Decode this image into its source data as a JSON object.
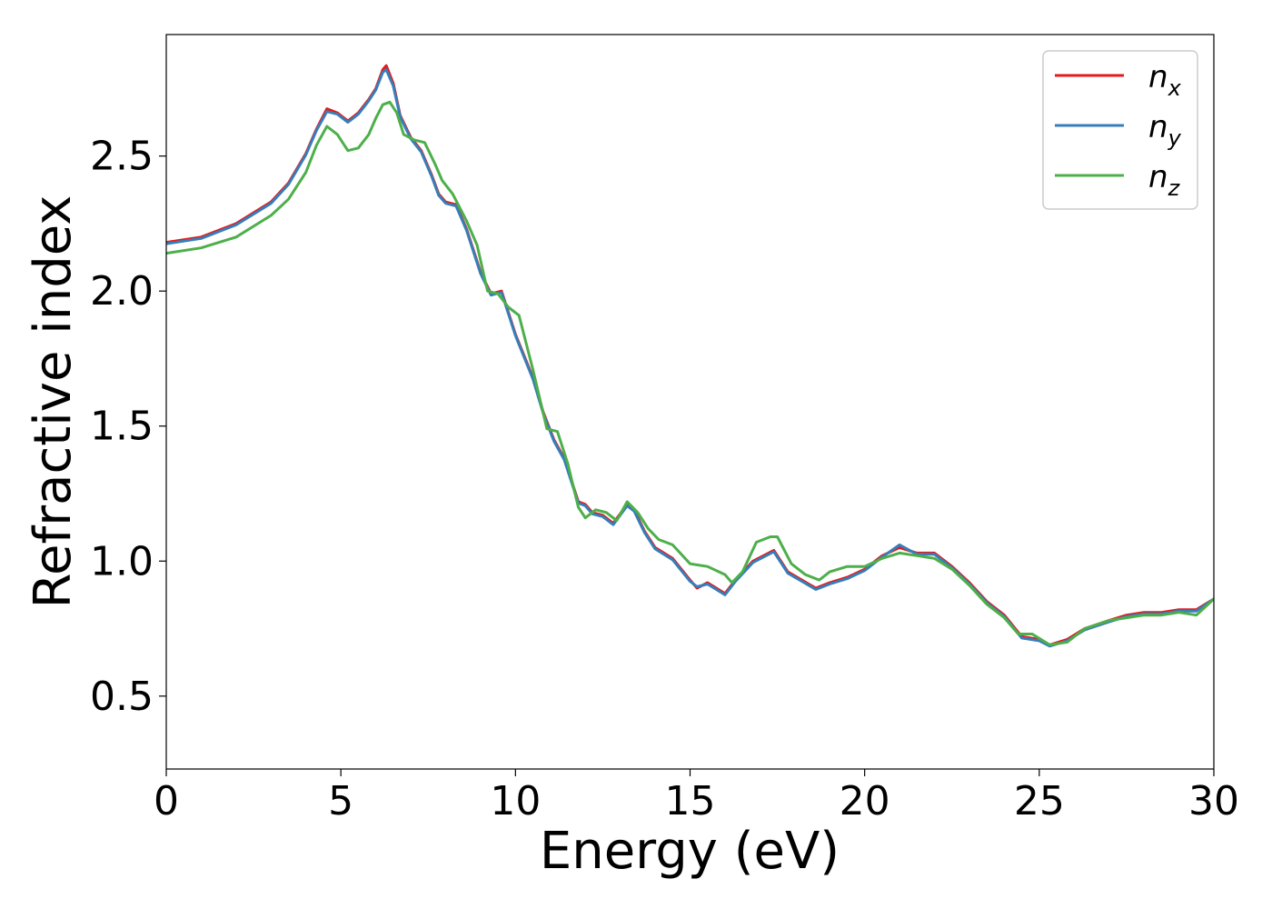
{
  "chart_data": {
    "type": "line",
    "title": "",
    "xlabel": "Energy (eV)",
    "ylabel": "Refractive index",
    "xlim": [
      0,
      30
    ],
    "ylim": [
      0.23,
      2.95
    ],
    "xticks": [
      0,
      5,
      10,
      15,
      20,
      25,
      30
    ],
    "xtick_labels": [
      "0",
      "5",
      "10",
      "15",
      "20",
      "25",
      "30"
    ],
    "yticks": [
      0.5,
      1.0,
      1.5,
      2.0,
      2.5
    ],
    "ytick_labels": [
      "0.5",
      "1.0",
      "1.5",
      "2.0",
      "2.5"
    ],
    "grid": false,
    "legend_position": "top-right",
    "series": [
      {
        "name": "n",
        "subscript": "x",
        "color": "#e41a1c",
        "points": [
          [
            0,
            2.18
          ],
          [
            1,
            2.2
          ],
          [
            2,
            2.25
          ],
          [
            3,
            2.33
          ],
          [
            3.5,
            2.4
          ],
          [
            4,
            2.51
          ],
          [
            4.3,
            2.6
          ],
          [
            4.6,
            2.675
          ],
          [
            4.9,
            2.66
          ],
          [
            5.2,
            2.63
          ],
          [
            5.5,
            2.66
          ],
          [
            5.8,
            2.71
          ],
          [
            6.0,
            2.75
          ],
          [
            6.2,
            2.82
          ],
          [
            6.3,
            2.835
          ],
          [
            6.5,
            2.77
          ],
          [
            6.7,
            2.65
          ],
          [
            7.0,
            2.57
          ],
          [
            7.3,
            2.52
          ],
          [
            7.6,
            2.43
          ],
          [
            7.8,
            2.36
          ],
          [
            8.0,
            2.33
          ],
          [
            8.3,
            2.32
          ],
          [
            8.6,
            2.23
          ],
          [
            9.0,
            2.07
          ],
          [
            9.3,
            1.99
          ],
          [
            9.6,
            2.0
          ],
          [
            10.0,
            1.84
          ],
          [
            10.5,
            1.68
          ],
          [
            10.8,
            1.55
          ],
          [
            11.1,
            1.45
          ],
          [
            11.4,
            1.38
          ],
          [
            11.8,
            1.22
          ],
          [
            12.0,
            1.21
          ],
          [
            12.2,
            1.18
          ],
          [
            12.5,
            1.17
          ],
          [
            12.8,
            1.14
          ],
          [
            13.2,
            1.21
          ],
          [
            13.4,
            1.19
          ],
          [
            13.7,
            1.11
          ],
          [
            14.0,
            1.05
          ],
          [
            14.5,
            1.01
          ],
          [
            15.0,
            0.93
          ],
          [
            15.2,
            0.9
          ],
          [
            15.5,
            0.92
          ],
          [
            16.0,
            0.88
          ],
          [
            16.3,
            0.93
          ],
          [
            16.8,
            1.0
          ],
          [
            17.4,
            1.04
          ],
          [
            17.8,
            0.96
          ],
          [
            18.2,
            0.93
          ],
          [
            18.6,
            0.9
          ],
          [
            19.0,
            0.92
          ],
          [
            19.5,
            0.94
          ],
          [
            20.0,
            0.97
          ],
          [
            20.5,
            1.02
          ],
          [
            21.0,
            1.05
          ],
          [
            21.5,
            1.03
          ],
          [
            22.0,
            1.03
          ],
          [
            22.5,
            0.98
          ],
          [
            23.0,
            0.92
          ],
          [
            23.5,
            0.85
          ],
          [
            24.0,
            0.8
          ],
          [
            24.5,
            0.72
          ],
          [
            25.0,
            0.71
          ],
          [
            25.3,
            0.69
          ],
          [
            25.8,
            0.71
          ],
          [
            26.3,
            0.75
          ],
          [
            27.0,
            0.78
          ],
          [
            27.5,
            0.8
          ],
          [
            28.0,
            0.81
          ],
          [
            28.5,
            0.81
          ],
          [
            29.0,
            0.82
          ],
          [
            29.5,
            0.82
          ],
          [
            30.0,
            0.86
          ]
        ]
      },
      {
        "name": "n",
        "subscript": "y",
        "color": "#377eb8",
        "points": [
          [
            0,
            2.175
          ],
          [
            1,
            2.195
          ],
          [
            2,
            2.245
          ],
          [
            3,
            2.325
          ],
          [
            3.5,
            2.395
          ],
          [
            4,
            2.505
          ],
          [
            4.3,
            2.595
          ],
          [
            4.6,
            2.665
          ],
          [
            4.9,
            2.655
          ],
          [
            5.2,
            2.625
          ],
          [
            5.5,
            2.655
          ],
          [
            5.8,
            2.705
          ],
          [
            6.0,
            2.745
          ],
          [
            6.2,
            2.81
          ],
          [
            6.3,
            2.82
          ],
          [
            6.5,
            2.76
          ],
          [
            6.7,
            2.645
          ],
          [
            7.0,
            2.565
          ],
          [
            7.3,
            2.515
          ],
          [
            7.6,
            2.425
          ],
          [
            7.8,
            2.355
          ],
          [
            8.0,
            2.325
          ],
          [
            8.3,
            2.315
          ],
          [
            8.6,
            2.225
          ],
          [
            9.0,
            2.065
          ],
          [
            9.3,
            1.985
          ],
          [
            9.6,
            1.995
          ],
          [
            10.0,
            1.835
          ],
          [
            10.5,
            1.675
          ],
          [
            10.8,
            1.545
          ],
          [
            11.1,
            1.445
          ],
          [
            11.4,
            1.375
          ],
          [
            11.8,
            1.215
          ],
          [
            12.0,
            1.205
          ],
          [
            12.2,
            1.175
          ],
          [
            12.5,
            1.165
          ],
          [
            12.8,
            1.135
          ],
          [
            13.2,
            1.205
          ],
          [
            13.4,
            1.185
          ],
          [
            13.7,
            1.105
          ],
          [
            14.0,
            1.045
          ],
          [
            14.5,
            1.005
          ],
          [
            15.0,
            0.925
          ],
          [
            15.2,
            0.905
          ],
          [
            15.5,
            0.915
          ],
          [
            16.0,
            0.875
          ],
          [
            16.3,
            0.925
          ],
          [
            16.8,
            0.995
          ],
          [
            17.4,
            1.035
          ],
          [
            17.8,
            0.955
          ],
          [
            18.2,
            0.925
          ],
          [
            18.6,
            0.895
          ],
          [
            19.0,
            0.915
          ],
          [
            19.5,
            0.935
          ],
          [
            20.0,
            0.965
          ],
          [
            20.5,
            1.015
          ],
          [
            21.0,
            1.06
          ],
          [
            21.5,
            1.025
          ],
          [
            22.0,
            1.025
          ],
          [
            22.5,
            0.975
          ],
          [
            23.0,
            0.915
          ],
          [
            23.5,
            0.845
          ],
          [
            24.0,
            0.795
          ],
          [
            24.5,
            0.715
          ],
          [
            25.0,
            0.705
          ],
          [
            25.3,
            0.685
          ],
          [
            25.8,
            0.705
          ],
          [
            26.3,
            0.745
          ],
          [
            27.0,
            0.775
          ],
          [
            27.5,
            0.795
          ],
          [
            28.0,
            0.805
          ],
          [
            28.5,
            0.805
          ],
          [
            29.0,
            0.815
          ],
          [
            29.5,
            0.815
          ],
          [
            30.0,
            0.86
          ]
        ]
      },
      {
        "name": "n",
        "subscript": "z",
        "color": "#4daf4a",
        "points": [
          [
            0,
            2.14
          ],
          [
            1,
            2.16
          ],
          [
            2,
            2.2
          ],
          [
            3,
            2.28
          ],
          [
            3.5,
            2.34
          ],
          [
            4,
            2.44
          ],
          [
            4.3,
            2.54
          ],
          [
            4.6,
            2.61
          ],
          [
            4.9,
            2.58
          ],
          [
            5.2,
            2.52
          ],
          [
            5.5,
            2.53
          ],
          [
            5.8,
            2.58
          ],
          [
            6.0,
            2.64
          ],
          [
            6.2,
            2.69
          ],
          [
            6.4,
            2.7
          ],
          [
            6.6,
            2.66
          ],
          [
            6.8,
            2.58
          ],
          [
            7.1,
            2.56
          ],
          [
            7.4,
            2.55
          ],
          [
            7.7,
            2.47
          ],
          [
            7.9,
            2.41
          ],
          [
            8.2,
            2.36
          ],
          [
            8.6,
            2.26
          ],
          [
            8.9,
            2.17
          ],
          [
            9.2,
            2.0
          ],
          [
            9.5,
            1.99
          ],
          [
            9.8,
            1.94
          ],
          [
            10.1,
            1.91
          ],
          [
            10.5,
            1.71
          ],
          [
            10.9,
            1.49
          ],
          [
            11.2,
            1.48
          ],
          [
            11.5,
            1.36
          ],
          [
            11.8,
            1.2
          ],
          [
            12.0,
            1.16
          ],
          [
            12.3,
            1.19
          ],
          [
            12.6,
            1.18
          ],
          [
            12.9,
            1.15
          ],
          [
            13.2,
            1.22
          ],
          [
            13.5,
            1.18
          ],
          [
            13.8,
            1.12
          ],
          [
            14.1,
            1.08
          ],
          [
            14.5,
            1.06
          ],
          [
            15.0,
            0.99
          ],
          [
            15.5,
            0.98
          ],
          [
            16.0,
            0.95
          ],
          [
            16.2,
            0.92
          ],
          [
            16.5,
            0.96
          ],
          [
            16.9,
            1.07
          ],
          [
            17.3,
            1.09
          ],
          [
            17.5,
            1.09
          ],
          [
            17.9,
            0.99
          ],
          [
            18.3,
            0.95
          ],
          [
            18.7,
            0.93
          ],
          [
            19.0,
            0.96
          ],
          [
            19.5,
            0.98
          ],
          [
            20.0,
            0.98
          ],
          [
            20.5,
            1.01
          ],
          [
            21.0,
            1.03
          ],
          [
            21.5,
            1.02
          ],
          [
            22.0,
            1.01
          ],
          [
            22.5,
            0.97
          ],
          [
            23.0,
            0.91
          ],
          [
            23.5,
            0.84
          ],
          [
            24.0,
            0.79
          ],
          [
            24.4,
            0.73
          ],
          [
            24.8,
            0.73
          ],
          [
            25.3,
            0.69
          ],
          [
            25.8,
            0.7
          ],
          [
            26.3,
            0.75
          ],
          [
            27.0,
            0.78
          ],
          [
            27.5,
            0.79
          ],
          [
            28.0,
            0.8
          ],
          [
            28.5,
            0.8
          ],
          [
            29.0,
            0.81
          ],
          [
            29.5,
            0.8
          ],
          [
            30.0,
            0.86
          ]
        ]
      }
    ]
  }
}
